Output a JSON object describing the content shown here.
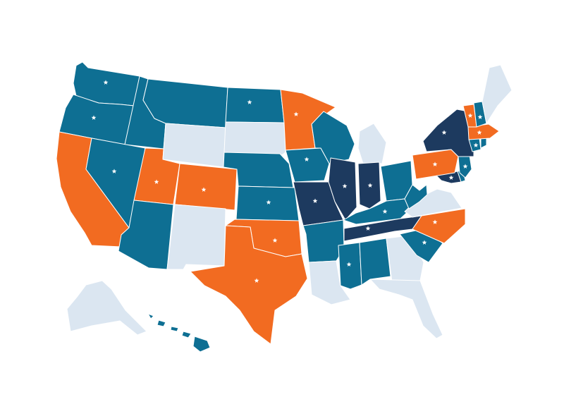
{
  "map": {
    "colors": {
      "background": "#ffffff",
      "orange": "#f26b21",
      "teal": "#0e6f93",
      "navy": "#1d3a5f",
      "light": "#dbe6f1",
      "star": "#ffffff"
    },
    "states": [
      {
        "code": "WA",
        "cat": "teal",
        "star": true
      },
      {
        "code": "OR",
        "cat": "teal",
        "star": true
      },
      {
        "code": "CA",
        "cat": "orange",
        "star": false
      },
      {
        "code": "ID",
        "cat": "teal",
        "star": false
      },
      {
        "code": "NV",
        "cat": "teal",
        "star": true
      },
      {
        "code": "UT",
        "cat": "orange",
        "star": true
      },
      {
        "code": "AZ",
        "cat": "teal",
        "star": false
      },
      {
        "code": "MT",
        "cat": "teal",
        "star": false
      },
      {
        "code": "WY",
        "cat": "light",
        "star": false
      },
      {
        "code": "CO",
        "cat": "orange",
        "star": true
      },
      {
        "code": "NM",
        "cat": "light",
        "star": false
      },
      {
        "code": "ND",
        "cat": "teal",
        "star": true
      },
      {
        "code": "SD",
        "cat": "light",
        "star": false
      },
      {
        "code": "NE",
        "cat": "teal",
        "star": false
      },
      {
        "code": "KS",
        "cat": "teal",
        "star": true
      },
      {
        "code": "OK",
        "cat": "orange",
        "star": true
      },
      {
        "code": "TX",
        "cat": "orange",
        "star": true
      },
      {
        "code": "MN",
        "cat": "orange",
        "star": true
      },
      {
        "code": "IA",
        "cat": "teal",
        "star": true
      },
      {
        "code": "MO",
        "cat": "navy",
        "star": true
      },
      {
        "code": "AR",
        "cat": "teal",
        "star": false
      },
      {
        "code": "LA",
        "cat": "light",
        "star": false
      },
      {
        "code": "WI",
        "cat": "teal",
        "star": false
      },
      {
        "code": "IL",
        "cat": "navy",
        "star": true
      },
      {
        "code": "MI",
        "cat": "light",
        "star": false
      },
      {
        "code": "IN",
        "cat": "navy",
        "star": true
      },
      {
        "code": "OH",
        "cat": "teal",
        "star": false
      },
      {
        "code": "KY",
        "cat": "teal",
        "star": true
      },
      {
        "code": "TN",
        "cat": "navy",
        "star": true
      },
      {
        "code": "MS",
        "cat": "teal",
        "star": true
      },
      {
        "code": "AL",
        "cat": "teal",
        "star": false
      },
      {
        "code": "GA",
        "cat": "light",
        "star": false
      },
      {
        "code": "FL",
        "cat": "light",
        "star": false
      },
      {
        "code": "SC",
        "cat": "teal",
        "star": true
      },
      {
        "code": "NC",
        "cat": "orange",
        "star": true
      },
      {
        "code": "VA",
        "cat": "light",
        "star": false
      },
      {
        "code": "WV",
        "cat": "teal",
        "star": false
      },
      {
        "code": "MD",
        "cat": "navy",
        "star": true
      },
      {
        "code": "DE",
        "cat": "teal",
        "star": false
      },
      {
        "code": "PA",
        "cat": "orange",
        "star": true
      },
      {
        "code": "NJ",
        "cat": "teal",
        "star": true
      },
      {
        "code": "NY",
        "cat": "navy",
        "star": true
      },
      {
        "code": "CT",
        "cat": "teal",
        "star": true
      },
      {
        "code": "RI",
        "cat": "teal",
        "star": false
      },
      {
        "code": "MA",
        "cat": "orange",
        "star": true
      },
      {
        "code": "VT",
        "cat": "orange",
        "star": true
      },
      {
        "code": "NH",
        "cat": "teal",
        "star": true
      },
      {
        "code": "ME",
        "cat": "light",
        "star": false
      },
      {
        "code": "AK",
        "cat": "light",
        "star": false
      },
      {
        "code": "HI",
        "cat": "teal",
        "star": false
      }
    ]
  }
}
